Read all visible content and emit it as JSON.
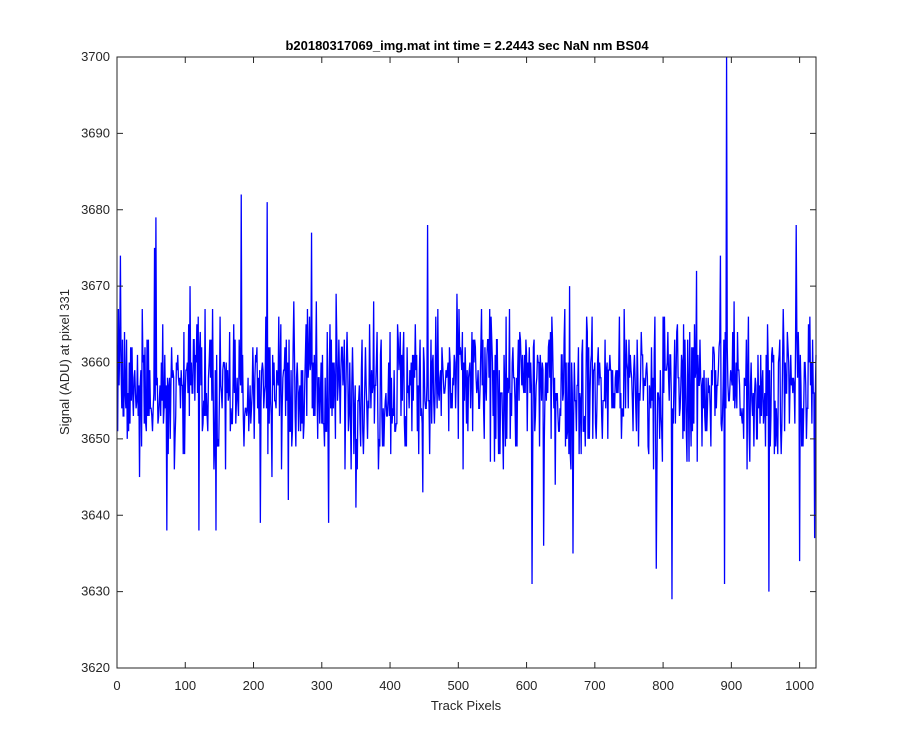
{
  "chart_data": {
    "type": "line",
    "title": "b20180317069_img.mat int time = 2.2443 sec  NaN nm BS04",
    "xlabel": "Track Pixels",
    "ylabel": "Signal (ADU) at pixel 331",
    "xlim": [
      0,
      1024
    ],
    "ylim": [
      3620,
      3700
    ],
    "xticks": [
      0,
      100,
      200,
      300,
      400,
      500,
      600,
      700,
      800,
      900,
      1000
    ],
    "yticks": [
      3620,
      3630,
      3640,
      3650,
      3660,
      3670,
      3680,
      3690,
      3700
    ],
    "grid": false,
    "legend": "none",
    "line_color": "#0000ff",
    "noise_baseline": 3657,
    "series": [
      {
        "x_start": 1,
        "x_end": 1024,
        "notable_points": [
          {
            "x": 5,
            "y": 3674
          },
          {
            "x": 55,
            "y": 3675
          },
          {
            "x": 57,
            "y": 3679
          },
          {
            "x": 73,
            "y": 3638
          },
          {
            "x": 120,
            "y": 3638
          },
          {
            "x": 145,
            "y": 3638
          },
          {
            "x": 182,
            "y": 3682
          },
          {
            "x": 210,
            "y": 3639
          },
          {
            "x": 220,
            "y": 3681
          },
          {
            "x": 285,
            "y": 3677
          },
          {
            "x": 310,
            "y": 3639
          },
          {
            "x": 455,
            "y": 3678
          },
          {
            "x": 608,
            "y": 3631
          },
          {
            "x": 625,
            "y": 3636
          },
          {
            "x": 668,
            "y": 3635
          },
          {
            "x": 790,
            "y": 3633
          },
          {
            "x": 813,
            "y": 3629
          },
          {
            "x": 884,
            "y": 3674
          },
          {
            "x": 890,
            "y": 3631
          },
          {
            "x": 893,
            "y": 3700
          },
          {
            "x": 955,
            "y": 3630
          },
          {
            "x": 995,
            "y": 3678
          },
          {
            "x": 1000,
            "y": 3634
          },
          {
            "x": 1022,
            "y": 3637
          }
        ]
      }
    ]
  }
}
